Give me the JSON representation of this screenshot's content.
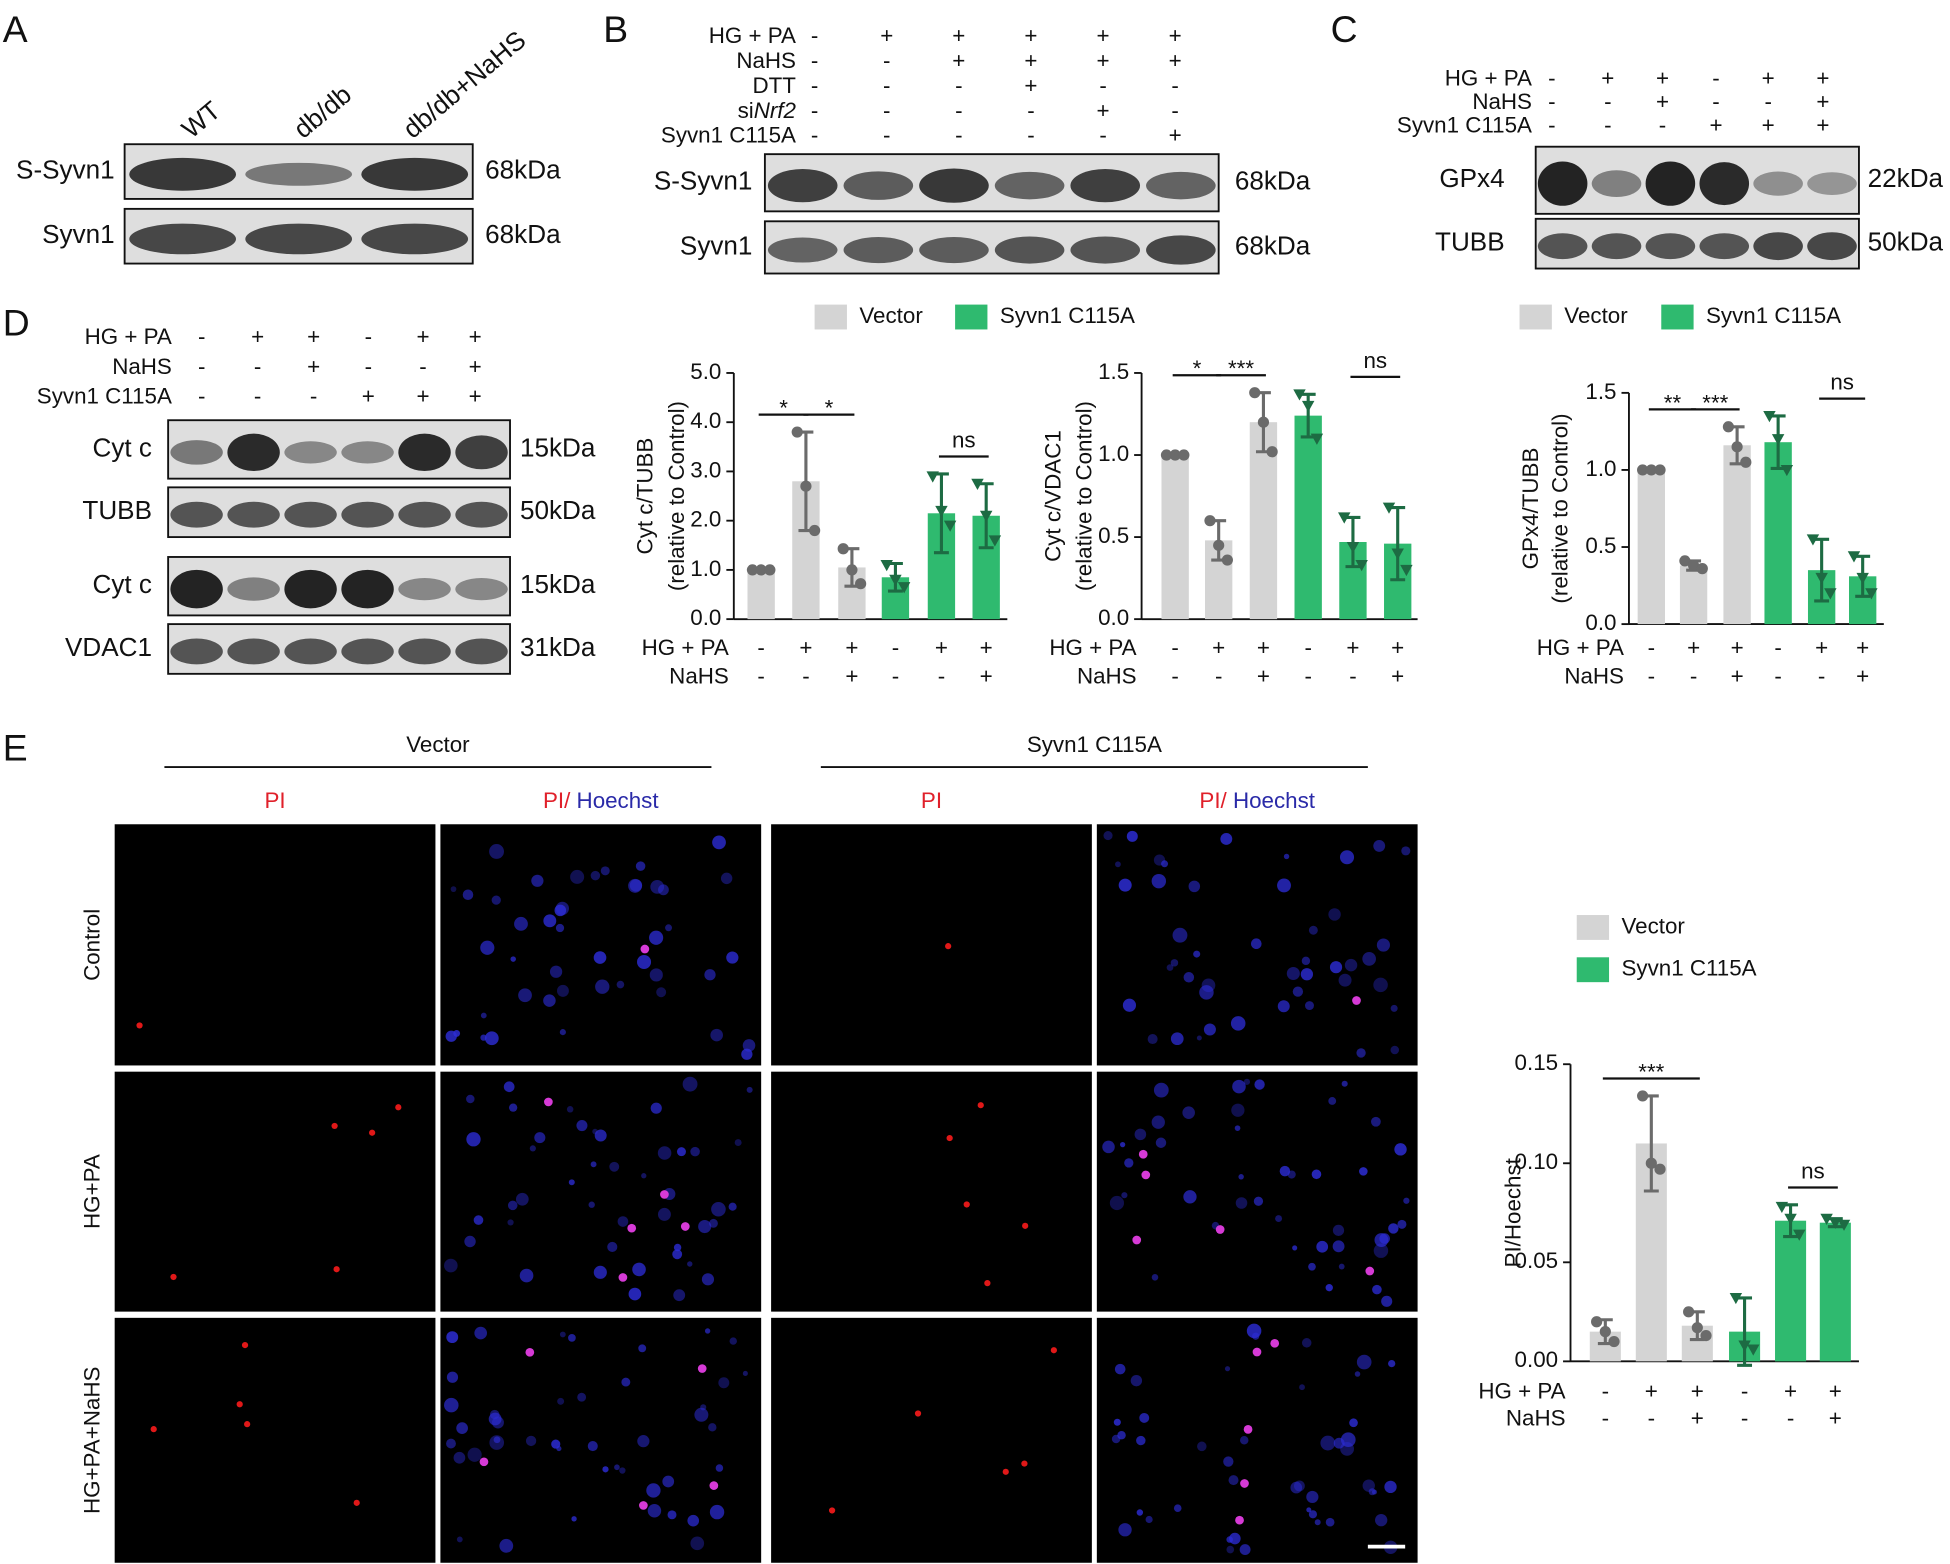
{
  "panels": [
    "A",
    "B",
    "C",
    "D",
    "E"
  ],
  "blot_a": {
    "lanes": [
      "WT",
      "db/db",
      "db/db+NaHS"
    ],
    "rows": [
      {
        "name": "S-Syvn1",
        "size": "68kDa"
      },
      {
        "name": "Syvn1",
        "size": "68kDa"
      }
    ]
  },
  "blot_b": {
    "conditions": [
      {
        "name": "HG + PA",
        "signs": [
          "-",
          "+",
          "+",
          "+",
          "+",
          "+"
        ]
      },
      {
        "name": "NaHS",
        "signs": [
          "-",
          "-",
          "+",
          "+",
          "+",
          "+"
        ]
      },
      {
        "name": "DTT",
        "signs": [
          "-",
          "-",
          "-",
          "+",
          "-",
          "-"
        ]
      },
      {
        "name": "si",
        "name_italic": "Nrf2",
        "signs": [
          "-",
          "-",
          "-",
          "-",
          "+",
          "-"
        ]
      },
      {
        "name": "Syvn1 C115A",
        "signs": [
          "-",
          "-",
          "-",
          "-",
          "-",
          "+"
        ]
      }
    ],
    "rows": [
      {
        "name": "S-Syvn1",
        "size": "68kDa"
      },
      {
        "name": "Syvn1",
        "size": "68kDa"
      }
    ]
  },
  "blot_c": {
    "conditions": [
      {
        "name": "HG + PA",
        "signs": [
          "-",
          "+",
          "+",
          "-",
          "+",
          "+"
        ]
      },
      {
        "name": "NaHS",
        "signs": [
          "-",
          "-",
          "+",
          "-",
          "-",
          "+"
        ]
      },
      {
        "name": "Syvn1 C115A",
        "signs": [
          "-",
          "-",
          "-",
          "+",
          "+",
          "+"
        ]
      }
    ],
    "rows": [
      {
        "name": "GPx4",
        "size": "22kDa"
      },
      {
        "name": "TUBB",
        "size": "50kDa"
      }
    ]
  },
  "blot_d": {
    "conditions": [
      {
        "name": "HG + PA",
        "signs": [
          "-",
          "+",
          "+",
          "-",
          "+",
          "+"
        ]
      },
      {
        "name": "NaHS",
        "signs": [
          "-",
          "-",
          "+",
          "-",
          "-",
          "+"
        ]
      },
      {
        "name": "Syvn1 C115A",
        "signs": [
          "-",
          "-",
          "-",
          "+",
          "+",
          "+"
        ]
      }
    ],
    "rows": [
      {
        "name": "Cyt c",
        "size": "15kDa"
      },
      {
        "name": "TUBB",
        "size": "50kDa"
      },
      {
        "name": "Cyt c",
        "size": "15kDa"
      },
      {
        "name": "VDAC1",
        "size": "31kDa"
      }
    ]
  },
  "chart_data": [
    {
      "type": "bar",
      "ylabel": "Cyt c/TUBB",
      "ylabel_sub": "(relative to Control)",
      "legend": true,
      "conditions": [
        {
          "name": "HG + PA",
          "signs": [
            "-",
            "+",
            "+",
            "-",
            "+",
            "+"
          ]
        },
        {
          "name": "NaHS",
          "signs": [
            "-",
            "-",
            "+",
            "-",
            "-",
            "+"
          ]
        }
      ],
      "series": [
        {
          "name": "Vector",
          "color": "#d4d4d4",
          "edge": "#6b6b6b",
          "marker": "circle",
          "values": [
            1.0,
            2.8,
            1.05,
            null,
            null,
            null
          ],
          "errors": [
            0,
            1.0,
            0.38,
            null,
            null,
            null
          ],
          "points": [
            [
              1,
              1,
              1
            ],
            [
              3.8,
              2.7,
              1.8
            ],
            [
              1.43,
              1.0,
              0.72
            ],
            null,
            null,
            null
          ]
        },
        {
          "name": "Syvn1 C115A",
          "color": "#2fba6f",
          "edge": "#1d6b43",
          "marker": "triangle",
          "values": [
            null,
            null,
            null,
            0.85,
            2.15,
            2.1
          ],
          "errors": [
            null,
            null,
            null,
            0.28,
            0.8,
            0.65
          ],
          "points": [
            null,
            null,
            null,
            [
              1.1,
              0.8,
              0.65
            ],
            [
              2.9,
              2.2,
              1.9
            ],
            [
              2.75,
              2.1,
              1.6
            ]
          ]
        }
      ],
      "ylim": [
        0,
        5
      ],
      "yticks": [
        {
          "value": 0,
          "label": "0.0"
        },
        {
          "value": 1,
          "label": "1.0"
        },
        {
          "value": 2,
          "label": "2.0"
        },
        {
          "value": 3,
          "label": "3.0"
        },
        {
          "value": 4,
          "label": "4.0"
        },
        {
          "value": 5,
          "label": "5.0"
        }
      ],
      "annotations": [
        {
          "text": "*",
          "from": 0,
          "to": 1
        },
        {
          "text": "*",
          "from": 1,
          "to": 2
        },
        {
          "text": "ns",
          "from": 4,
          "to": 5
        }
      ]
    },
    {
      "type": "bar",
      "ylabel": "Cyt c/VDAC1",
      "ylabel_sub": "(relative to Control)",
      "legend": false,
      "conditions": [
        {
          "name": "HG + PA",
          "signs": [
            "-",
            "+",
            "+",
            "-",
            "+",
            "+"
          ]
        },
        {
          "name": "NaHS",
          "signs": [
            "-",
            "-",
            "+",
            "-",
            "-",
            "+"
          ]
        }
      ],
      "series": [
        {
          "name": "Vector",
          "color": "#d4d4d4",
          "edge": "#6b6b6b",
          "marker": "circle",
          "values": [
            1.0,
            0.48,
            1.2,
            null,
            null,
            null
          ],
          "errors": [
            0,
            0.12,
            0.18,
            null,
            null,
            null
          ],
          "points": [
            [
              1,
              1,
              1
            ],
            [
              0.6,
              0.45,
              0.36
            ],
            [
              1.38,
              1.2,
              1.02
            ],
            null,
            null,
            null
          ]
        },
        {
          "name": "Syvn1 C115A",
          "color": "#2fba6f",
          "edge": "#1d6b43",
          "marker": "triangle",
          "values": [
            null,
            null,
            null,
            1.24,
            0.47,
            0.46
          ],
          "errors": [
            null,
            null,
            null,
            0.13,
            0.15,
            0.22
          ],
          "points": [
            null,
            null,
            null,
            [
              1.37,
              1.3,
              1.1
            ],
            [
              0.62,
              0.44,
              0.33
            ],
            [
              0.68,
              0.4,
              0.3
            ]
          ]
        }
      ],
      "ylim": [
        0,
        1.5
      ],
      "yticks": [
        {
          "value": 0,
          "label": "0.0"
        },
        {
          "value": 0.5,
          "label": "0.5"
        },
        {
          "value": 1,
          "label": "1.0"
        },
        {
          "value": 1.5,
          "label": "1.5"
        }
      ],
      "annotations": [
        {
          "text": "*",
          "from": 0,
          "to": 1
        },
        {
          "text": "***",
          "from": 1,
          "to": 2
        },
        {
          "text": "ns",
          "from": 4,
          "to": 5
        }
      ]
    },
    {
      "type": "bar",
      "ylabel": "GPx4/TUBB",
      "ylabel_sub": "(relative to Control)",
      "legend": true,
      "conditions": [
        {
          "name": "HG + PA",
          "signs": [
            "-",
            "+",
            "+",
            "-",
            "+",
            "+"
          ]
        },
        {
          "name": "NaHS",
          "signs": [
            "-",
            "-",
            "+",
            "-",
            "-",
            "+"
          ]
        }
      ],
      "series": [
        {
          "name": "Vector",
          "color": "#d4d4d4",
          "edge": "#6b6b6b",
          "marker": "circle",
          "values": [
            1.0,
            0.38,
            1.16,
            null,
            null,
            null
          ],
          "errors": [
            0,
            0.03,
            0.12,
            null,
            null,
            null
          ],
          "points": [
            [
              1,
              1,
              1
            ],
            [
              0.41,
              0.38,
              0.36
            ],
            [
              1.28,
              1.15,
              1.05
            ],
            null,
            null,
            null
          ]
        },
        {
          "name": "Syvn1 C115A",
          "color": "#2fba6f",
          "edge": "#1d6b43",
          "marker": "triangle",
          "values": [
            null,
            null,
            null,
            1.18,
            0.35,
            0.31
          ],
          "errors": [
            null,
            null,
            null,
            0.17,
            0.2,
            0.13
          ],
          "points": [
            null,
            null,
            null,
            [
              1.35,
              1.2,
              1.0
            ],
            [
              0.55,
              0.3,
              0.2
            ],
            [
              0.44,
              0.3,
              0.2
            ]
          ]
        }
      ],
      "ylim": [
        0,
        1.5
      ],
      "yticks": [
        {
          "value": 0,
          "label": "0.0"
        },
        {
          "value": 0.5,
          "label": "0.5"
        },
        {
          "value": 1,
          "label": "1.0"
        },
        {
          "value": 1.5,
          "label": "1.5"
        }
      ],
      "annotations": [
        {
          "text": "**",
          "from": 0,
          "to": 1
        },
        {
          "text": "***",
          "from": 1,
          "to": 2
        },
        {
          "text": "ns",
          "from": 4,
          "to": 5
        }
      ]
    },
    {
      "type": "bar",
      "ylabel": "PI/Hoechst",
      "legend": true,
      "conditions": [
        {
          "name": "HG + PA",
          "signs": [
            "-",
            "+",
            "+",
            "-",
            "+",
            "+"
          ]
        },
        {
          "name": "NaHS",
          "signs": [
            "-",
            "-",
            "+",
            "-",
            "-",
            "+"
          ]
        }
      ],
      "series": [
        {
          "name": "Vector",
          "color": "#d4d4d4",
          "edge": "#6b6b6b",
          "marker": "circle",
          "values": [
            0.015,
            0.11,
            0.018,
            null,
            null,
            null
          ],
          "errors": [
            0.006,
            0.024,
            0.007,
            null,
            null,
            null
          ],
          "points": [
            [
              0.02,
              0.015,
              0.01
            ],
            [
              0.134,
              0.1,
              0.097
            ],
            [
              0.025,
              0.017,
              0.013
            ],
            null,
            null,
            null
          ]
        },
        {
          "name": "Syvn1 C115A",
          "color": "#2fba6f",
          "edge": "#1d6b43",
          "marker": "triangle",
          "values": [
            null,
            null,
            null,
            0.015,
            0.071,
            0.07
          ],
          "errors": [
            null,
            null,
            null,
            0.017,
            0.008,
            0.002
          ],
          "points": [
            null,
            null,
            null,
            [
              0.032,
              0.008,
              0.006
            ],
            [
              0.078,
              0.072,
              0.064
            ],
            [
              0.072,
              0.07,
              0.069
            ]
          ]
        }
      ],
      "ylim": [
        0,
        0.15
      ],
      "yticks": [
        {
          "value": 0,
          "label": "0.00"
        },
        {
          "value": 0.05,
          "label": "0.05"
        },
        {
          "value": 0.1,
          "label": "0.10"
        },
        {
          "value": 0.15,
          "label": "0.15"
        }
      ],
      "annotations": [
        {
          "text": "***",
          "from": 0,
          "to": 2
        },
        {
          "text": "ns",
          "from": 4,
          "to": 5
        }
      ]
    }
  ],
  "panel_e": {
    "groups": [
      "Vector",
      "Syvn1 C115A"
    ],
    "columns": [
      {
        "stain": "PI"
      },
      {
        "stain": "PI/",
        "stain2": " Hoechst"
      }
    ],
    "rows": [
      "Control",
      "HG+PA",
      "HG+PA+NaHS"
    ]
  }
}
